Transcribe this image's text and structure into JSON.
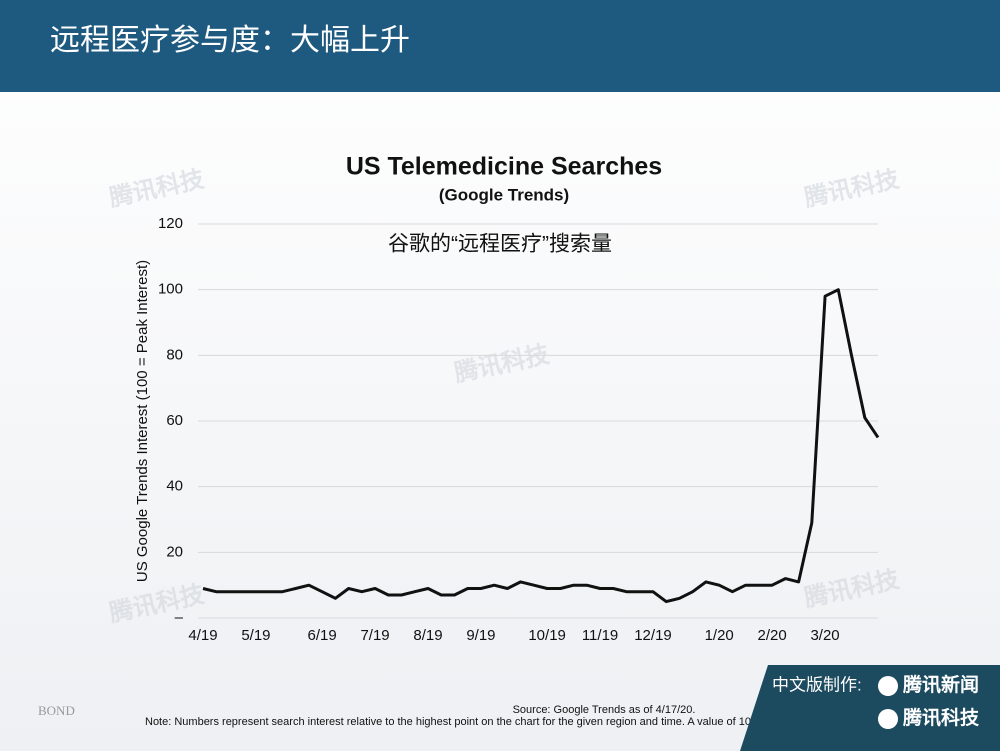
{
  "header": {
    "title": "远程医疗参与度：大幅上升"
  },
  "chart_data": {
    "type": "line",
    "title": "US Telemedicine Searches",
    "subtitle": "(Google Trends)",
    "y_label": "US Google Trends Interest (100 = Peak Interest)",
    "annotation": "谷歌的“远程医疗”搜索量",
    "categories": [
      "4/19",
      null,
      null,
      null,
      "5/19",
      null,
      null,
      null,
      null,
      "6/19",
      null,
      null,
      null,
      "7/19",
      null,
      null,
      null,
      "8/19",
      null,
      null,
      null,
      "9/19",
      null,
      null,
      null,
      null,
      "10/19",
      null,
      null,
      null,
      "11/19",
      null,
      null,
      null,
      "12/19",
      null,
      null,
      null,
      null,
      "1/20",
      null,
      null,
      null,
      "2/20",
      null,
      null,
      null,
      "3/20",
      null,
      null,
      null,
      null
    ],
    "values": [
      9,
      8,
      8,
      8,
      8,
      8,
      8,
      9,
      10,
      8,
      6,
      9,
      8,
      9,
      7,
      7,
      8,
      9,
      7,
      7,
      9,
      9,
      10,
      9,
      11,
      10,
      9,
      9,
      10,
      10,
      9,
      9,
      8,
      8,
      8,
      5,
      6,
      8,
      11,
      10,
      8,
      10,
      10,
      10,
      12,
      11,
      29,
      98,
      100,
      80,
      61,
      55
    ],
    "color": "#111111",
    "ylim": [
      0,
      120
    ],
    "yticks": [
      {
        "value": 0,
        "label": "–"
      },
      20,
      40,
      60,
      80,
      100,
      120
    ],
    "grid": true
  },
  "footer": {
    "source": "Source: Google Trends as of 4/17/20.",
    "note": "Note: Numbers represent search interest relative to the highest point on the chart for the given region and time. A value of 10",
    "logo": "BOND",
    "badge_label": "中文版制作:",
    "badge_brand_1": "腾讯新闻",
    "badge_brand_2": "腾讯科技"
  },
  "watermark": "腾讯科技"
}
